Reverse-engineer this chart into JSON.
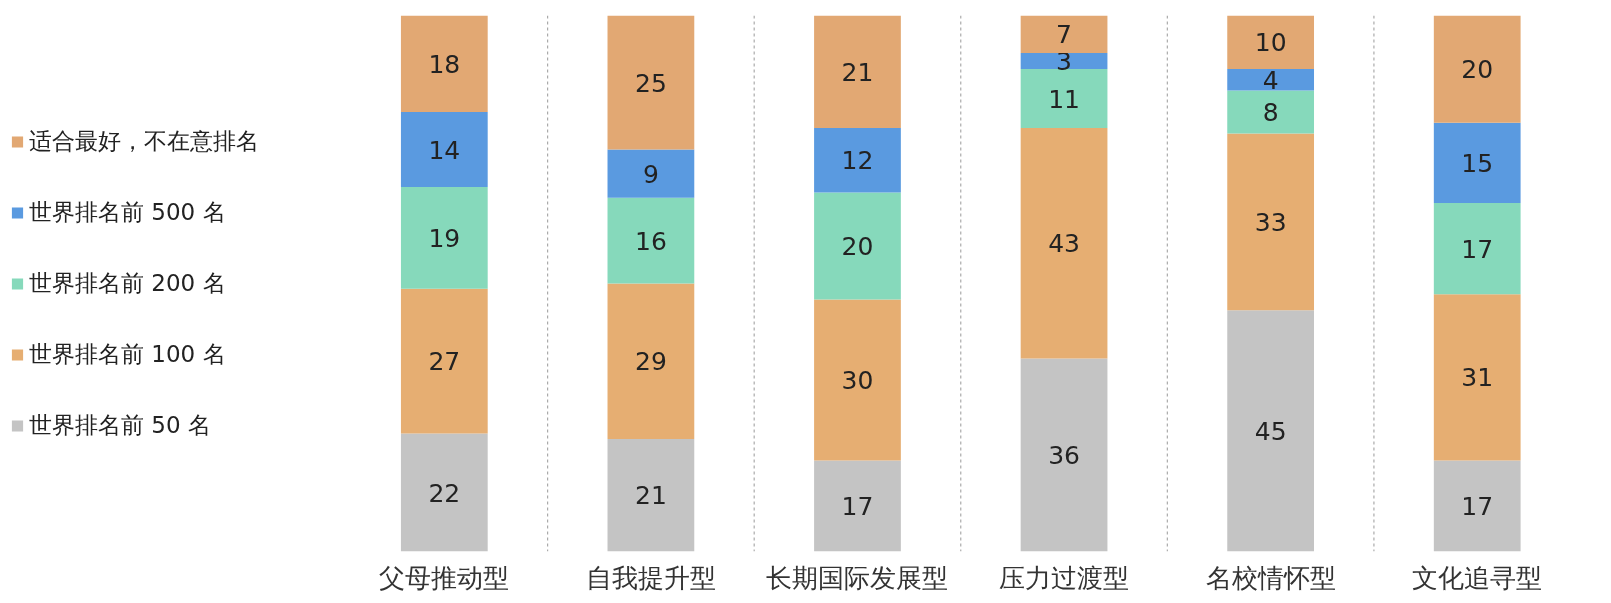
{
  "chart_data": {
    "type": "bar",
    "stacked": true,
    "data_labels": true,
    "legend": "left",
    "grid": "x",
    "categories": [
      "父母推动型",
      "自我提升型",
      "长期国际发展型",
      "压力过渡型",
      "名校情怀型",
      "文化追寻型"
    ],
    "series": [
      {
        "name": "世界排名前 50 名",
        "color": "#c4c4c4",
        "values": [
          22,
          21,
          17,
          36,
          45,
          17
        ]
      },
      {
        "name": "世界排名前 100 名",
        "color": "#e6ae72",
        "values": [
          27,
          29,
          30,
          43,
          33,
          31
        ]
      },
      {
        "name": "世界排名前 200 名",
        "color": "#86d9bb",
        "values": [
          19,
          16,
          20,
          11,
          8,
          17
        ]
      },
      {
        "name": "世界排名前 500 名",
        "color": "#5a9ae0",
        "values": [
          14,
          9,
          12,
          3,
          4,
          15
        ]
      },
      {
        "name": "适合最好，不在意排名",
        "color": "#e2a873",
        "values": [
          18,
          25,
          21,
          7,
          10,
          20
        ]
      }
    ]
  }
}
